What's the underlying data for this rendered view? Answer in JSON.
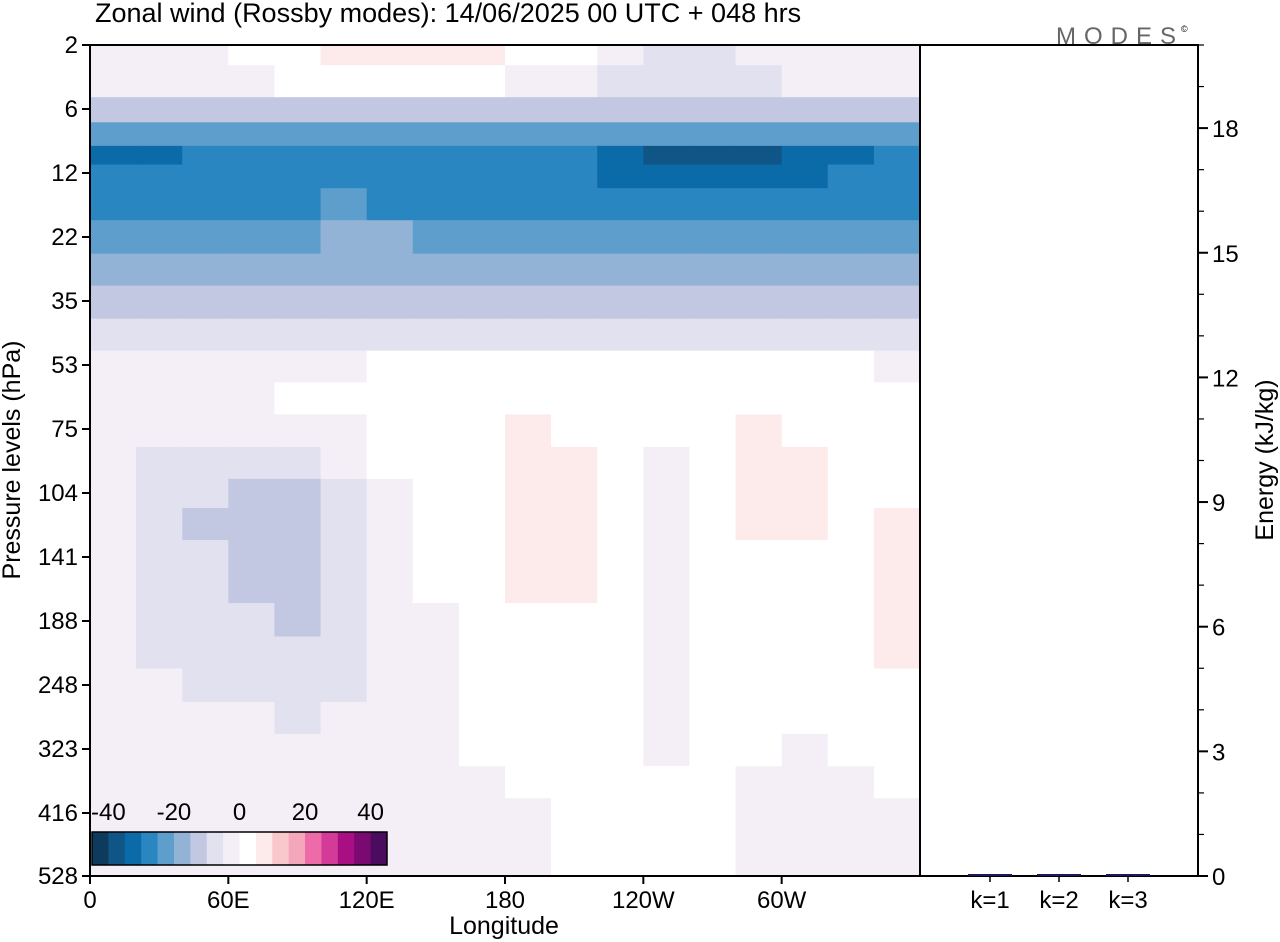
{
  "figure": {
    "title": "Zonal wind (Rossby modes):  14/06/2025  00 UTC  + 048 hrs",
    "logo": "MODES",
    "logo_mark": "©"
  },
  "chart_data": [
    {
      "type": "heatmap",
      "title": "Zonal wind (Rossby modes):  14/06/2025  00 UTC  + 048 hrs",
      "xlabel": "Longitude",
      "ylabel": "Pressure levels (hPa)",
      "x_ticks": [
        "0",
        "60E",
        "120E",
        "180",
        "120W",
        "60W"
      ],
      "x_tick_degrees": [
        0,
        60,
        120,
        180,
        240,
        300
      ],
      "xlim": [
        0,
        360
      ],
      "y_ticks": [
        "2",
        "6",
        "12",
        "22",
        "35",
        "53",
        "75",
        "104",
        "141",
        "188",
        "248",
        "323",
        "416",
        "528"
      ],
      "y_direction": "pressure decreasing upward",
      "colorbar": {
        "labels": [
          "-40",
          "-20",
          "0",
          "20",
          "40"
        ],
        "range": [
          -45,
          45
        ],
        "step": 5,
        "colors": [
          "#0e3a5e",
          "#0f5686",
          "#0b6aa8",
          "#2a86c0",
          "#5d9ecc",
          "#93b3d6",
          "#c3c8e2",
          "#e2e1ef",
          "#f4eff7",
          "#ffffff",
          "#fdeaea",
          "#f8c8cd",
          "#f4a7bb",
          "#ec6ba8",
          "#d43a98",
          "#a90e82",
          "#7a0a72",
          "#4b0b5e"
        ]
      },
      "rows": [
        {
          "level": "2",
          "values": [
            -3,
            -3,
            -2,
            3,
            4,
            6,
            7,
            6,
            5,
            3,
            1,
            -3,
            -6,
            -6,
            -4,
            -2,
            -3,
            -4
          ]
        },
        {
          "level": "4",
          "values": [
            -5,
            -5,
            -4,
            -2,
            0,
            1,
            2,
            1,
            0,
            -1,
            -3,
            -7,
            -9,
            -9,
            -7,
            -5,
            -4,
            -5
          ]
        },
        {
          "level": "6",
          "values": [
            -13,
            -13,
            -12,
            -12,
            -11,
            -11,
            -12,
            -12,
            -12,
            -13,
            -13,
            -14,
            -14,
            -14,
            -14,
            -13,
            -13,
            -13
          ]
        },
        {
          "level": "8",
          "values": [
            -22,
            -22,
            -22,
            -22,
            -22,
            -22,
            -22,
            -22,
            -22,
            -22,
            -23,
            -23,
            -23,
            -23,
            -23,
            -23,
            -22,
            -22
          ]
        },
        {
          "level": "10",
          "values": [
            -34,
            -31,
            -29,
            -29,
            -29,
            -29,
            -29,
            -29,
            -29,
            -29,
            -30,
            -34,
            -36,
            -37,
            -37,
            -35,
            -31,
            -30
          ]
        },
        {
          "level": "12",
          "values": [
            -30,
            -29,
            -28,
            -28,
            -28,
            -28,
            -28,
            -29,
            -29,
            -29,
            -30,
            -31,
            -34,
            -35,
            -35,
            -32,
            -30,
            -30
          ]
        },
        {
          "level": "16",
          "values": [
            -28,
            -27,
            -27,
            -26,
            -26,
            -25,
            -26,
            -27,
            -28,
            -28,
            -28,
            -28,
            -28,
            -28,
            -28,
            -28,
            -28,
            -28
          ]
        },
        {
          "level": "22",
          "values": [
            -24,
            -23,
            -22,
            -22,
            -21,
            -20,
            -20,
            -22,
            -23,
            -23,
            -24,
            -24,
            -23,
            -23,
            -22,
            -22,
            -22,
            -23
          ]
        },
        {
          "level": "28",
          "values": [
            -16,
            -16,
            -16,
            -16,
            -16,
            -16,
            -16,
            -16,
            -16,
            -16,
            -16,
            -16,
            -16,
            -16,
            -16,
            -16,
            -16,
            -16
          ]
        },
        {
          "level": "35",
          "values": [
            -11,
            -11,
            -11,
            -11,
            -11,
            -11,
            -11,
            -11,
            -11,
            -11,
            -11,
            -11,
            -11,
            -11,
            -11,
            -11,
            -11,
            -11
          ]
        },
        {
          "level": "44",
          "values": [
            -6,
            -6,
            -6,
            -6,
            -6,
            -6,
            -6,
            -6,
            -6,
            -6,
            -6,
            -6,
            -6,
            -6,
            -6,
            -6,
            -6,
            -6
          ]
        },
        {
          "level": "53",
          "values": [
            -2,
            -2,
            -2,
            -2,
            -2,
            -1,
            0,
            1,
            1,
            1,
            1,
            1,
            1,
            1,
            1,
            1,
            0,
            -1
          ]
        },
        {
          "level": "64",
          "values": [
            -1,
            -1,
            -1,
            -1,
            0,
            0,
            1,
            2,
            2,
            3,
            2,
            2,
            1,
            2,
            3,
            2,
            1,
            0
          ]
        },
        {
          "level": "75",
          "values": [
            -3,
            -4,
            -4,
            -5,
            -4,
            -3,
            1,
            2,
            4,
            5,
            4,
            2,
            0,
            2,
            5,
            4,
            2,
            0
          ]
        },
        {
          "level": "90",
          "values": [
            -4,
            -7,
            -8,
            -9,
            -8,
            -5,
            0,
            2,
            4,
            6,
            5,
            2,
            -1,
            2,
            6,
            5,
            2,
            1
          ]
        },
        {
          "level": "104",
          "values": [
            -4,
            -8,
            -10,
            -12,
            -11,
            -6,
            -1,
            1,
            2,
            6,
            6,
            1,
            -2,
            1,
            6,
            6,
            2,
            4
          ]
        },
        {
          "level": "120",
          "values": [
            -3,
            -8,
            -11,
            -14,
            -13,
            -7,
            -1,
            1,
            1,
            5,
            6,
            1,
            -3,
            1,
            5,
            6,
            2,
            5
          ]
        },
        {
          "level": "141",
          "values": [
            -2,
            -8,
            -10,
            -13,
            -13,
            -7,
            -1,
            0,
            1,
            5,
            6,
            1,
            -4,
            1,
            4,
            4,
            2,
            6
          ]
        },
        {
          "level": "160",
          "values": [
            -2,
            -7,
            -10,
            -12,
            -12,
            -7,
            -1,
            0,
            1,
            5,
            6,
            1,
            -4,
            1,
            2,
            3,
            2,
            6
          ]
        },
        {
          "level": "188",
          "values": [
            -2,
            -7,
            -9,
            -10,
            -11,
            -7,
            -1,
            -1,
            1,
            4,
            4,
            1,
            -4,
            1,
            2,
            2,
            2,
            5
          ]
        },
        {
          "level": "215",
          "values": [
            -2,
            -6,
            -7,
            -8,
            -9,
            -7,
            -1,
            -1,
            1,
            3,
            2,
            1,
            -4,
            1,
            1,
            1,
            2,
            5
          ]
        },
        {
          "level": "248",
          "values": [
            -2,
            -5,
            -6,
            -6,
            -7,
            -6,
            -1,
            -1,
            1,
            2,
            1,
            1,
            -3,
            1,
            1,
            1,
            2,
            4
          ]
        },
        {
          "level": "285",
          "values": [
            -2,
            -4,
            -5,
            -5,
            -6,
            -5,
            -1,
            -1,
            1,
            1,
            1,
            0,
            -2,
            1,
            1,
            0,
            1,
            2
          ]
        },
        {
          "level": "323",
          "values": [
            -2,
            -4,
            -4,
            -4,
            -5,
            -4,
            -1,
            -1,
            1,
            1,
            1,
            0,
            -1,
            1,
            0,
            -1,
            0,
            1
          ]
        },
        {
          "level": "370",
          "values": [
            -3,
            -3,
            -3,
            -3,
            -3,
            -2,
            -1,
            -1,
            -1,
            0,
            1,
            0,
            0,
            1,
            -1,
            -2,
            -1,
            0
          ]
        },
        {
          "level": "416",
          "values": [
            -3,
            -2,
            -1,
            -1,
            -2,
            -1,
            -1,
            -2,
            -2,
            -1,
            1,
            0,
            0,
            1,
            -1,
            -2,
            -2,
            -1
          ]
        },
        {
          "level": "470",
          "values": [
            -2,
            -1,
            -1,
            -1,
            -1,
            -1,
            -1,
            -3,
            -2,
            -2,
            1,
            0,
            0,
            1,
            -1,
            -2,
            -2,
            -1
          ]
        },
        {
          "level": "528",
          "values": [
            -2,
            -1,
            -1,
            -1,
            -1,
            -1,
            -1,
            -3,
            -2,
            -2,
            0,
            0,
            0,
            0,
            -1,
            -2,
            -2,
            -1
          ]
        }
      ]
    },
    {
      "type": "bar",
      "title": "",
      "xlabel": "",
      "ylabel": "Energy (kJ/kg)",
      "categories": [
        "k=1",
        "k=2",
        "k=3"
      ],
      "values": [
        0.04,
        0.03,
        0.01
      ],
      "ylim": [
        0,
        20
      ],
      "y_ticks": [
        "0",
        "3",
        "6",
        "9",
        "12",
        "15",
        "18"
      ],
      "bar_color": "#1a1a5a"
    }
  ]
}
